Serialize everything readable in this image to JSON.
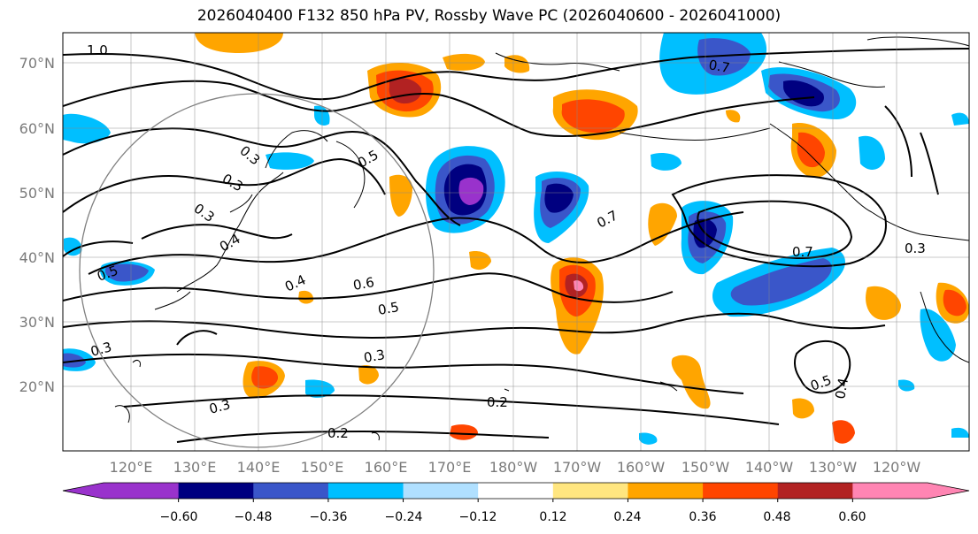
{
  "title": "2026040400 F132 850 hPa PV, Rossby Wave PC (2026040600 - 2026041000)",
  "lat_labels": [
    "70°N",
    "60°N",
    "50°N",
    "40°N",
    "30°N",
    "20°N"
  ],
  "lon_labels": [
    "120°E",
    "130°E",
    "140°E",
    "150°E",
    "160°E",
    "170°E",
    "180°W",
    "170°W",
    "160°W",
    "150°W",
    "140°W",
    "130°W",
    "120°W"
  ],
  "colorbar": {
    "ticks": [
      "−0.60",
      "−0.48",
      "−0.36",
      "−0.24",
      "−0.12",
      "0.12",
      "0.24",
      "0.36",
      "0.48",
      "0.60"
    ],
    "colors": [
      "#9932cc",
      "#000080",
      "#3a56c9",
      "#00bfff",
      "#b0e0ff",
      "#ffffff",
      "#ffe680",
      "#ffa500",
      "#ff4500",
      "#b22222",
      "#ff85b3"
    ]
  },
  "contour_labels": [
    "1.0",
    "0.7",
    "0.3",
    "0.5",
    "0.3",
    "0.3",
    "0.4",
    "0.5",
    "0.4",
    "0.6",
    "0.5",
    "0.7",
    "0.7",
    "0.3",
    "0.3",
    "0.3",
    "0.3",
    "0.2",
    "0.2",
    "0.5",
    "0.4"
  ]
}
